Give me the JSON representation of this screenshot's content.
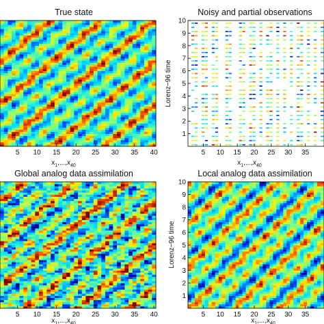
{
  "colormap": [
    "#00008f",
    "#0050ff",
    "#00dfff",
    "#70ff8f",
    "#ffef00",
    "#ff5000",
    "#800000"
  ],
  "chart_data": [
    {
      "type": "heatmap",
      "title": "True state",
      "xlabel": "",
      "ylabel": "",
      "x_ticks": [
        "5",
        "10",
        "15",
        "20",
        "25",
        "30",
        "35",
        "40"
      ],
      "y_ticks": [],
      "xlim": [
        0.5,
        40.5
      ],
      "ylim": [
        0,
        10
      ],
      "grid": false,
      "values": "x1..x40 vs Lorenz-96 time; continuous field, diagonal banded structure"
    },
    {
      "type": "heatmap",
      "title": "Noisy and partial observations",
      "xlabel": "",
      "ylabel": "Lorenz−96 time",
      "x_ticks": [
        "5",
        "10",
        "15",
        "20",
        "25",
        "30",
        "35"
      ],
      "y_ticks": [
        "1",
        "2",
        "3",
        "4",
        "5",
        "6",
        "7",
        "8",
        "9",
        "10"
      ],
      "xlim": [
        0.5,
        40.5
      ],
      "ylim": [
        0,
        10
      ],
      "grid": false,
      "observed_columns": [
        2,
        3,
        5,
        6,
        8,
        9,
        12,
        13,
        16,
        17,
        19,
        20,
        22,
        24,
        25,
        27,
        29,
        31,
        33,
        34,
        36,
        38,
        40
      ],
      "missing_columns": [
        10,
        11,
        14
      ]
    },
    {
      "type": "heatmap",
      "title": "Global analog data assimilation",
      "xlabel": "",
      "ylabel": "",
      "x_ticks": [
        "5",
        "10",
        "15",
        "20",
        "25",
        "30",
        "35",
        "40"
      ],
      "y_ticks": [],
      "xlim": [
        0.5,
        40.5
      ],
      "ylim": [
        0,
        10
      ],
      "grid": false
    },
    {
      "type": "heatmap",
      "title": "Local analog data assimilation",
      "xlabel": "",
      "ylabel": "Lorenz−96 time",
      "x_ticks": [
        "5",
        "10",
        "15",
        "20",
        "25",
        "30",
        "35"
      ],
      "y_ticks": [
        "1",
        "2",
        "3",
        "4",
        "5",
        "6",
        "7",
        "8",
        "9",
        "10"
      ],
      "xlim": [
        0.5,
        40.5
      ],
      "ylim": [
        0,
        10
      ],
      "grid": false
    }
  ],
  "axis_x_label": {
    "base": "x",
    "sub1": "1",
    "mid": ",...,x",
    "sub2": "40"
  }
}
